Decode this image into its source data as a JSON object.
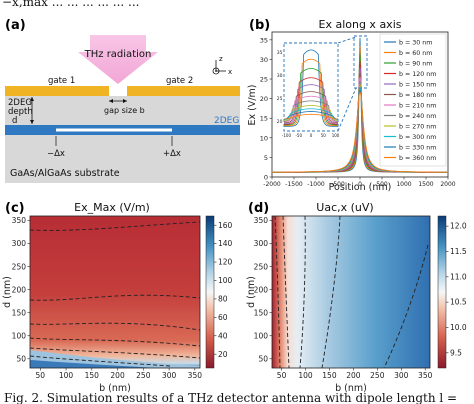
{
  "top_cut_text": "−x,max ... ... ... ... ... ...",
  "panel_a": {
    "label": "(a)",
    "thz": "THz radiation",
    "gate1": "gate 1",
    "gate2": "gate 2",
    "depth_lines": [
      "2DEG",
      "depth",
      "d"
    ],
    "gap": "gap size b",
    "twodeg": "2DEG",
    "minus_dx": "−Δx",
    "plus_dx": "+Δx",
    "substrate": "GaAs/AlGaAs substrate",
    "axis_z": "z",
    "axis_x": "x"
  },
  "panel_b_label": "(b)",
  "panel_c_label": "(c)",
  "panel_d_label": "(d)",
  "caption": "Fig. 2. Simulation results of a THz detector antenna with dipole length l =",
  "chart_data": [
    {
      "type": "line",
      "title": "Ex along x axis",
      "xlabel": "Position (nm)",
      "ylabel": "Ex (V/m)",
      "xlim": [
        -2000,
        2000
      ],
      "ylim": [
        0,
        37
      ],
      "xticks": [
        -2000,
        -1500,
        -1000,
        -500,
        0,
        500,
        1000,
        1500,
        2000
      ],
      "yticks": [
        0,
        5,
        10,
        15,
        20,
        25,
        30,
        35
      ],
      "legend_position": "right",
      "series": [
        {
          "name": "b = 30 nm",
          "peak": 35.5,
          "color": "#1f77b4"
        },
        {
          "name": "b = 60 nm",
          "peak": 33.5,
          "color": "#ff7f0e"
        },
        {
          "name": "b = 90 nm",
          "peak": 31.5,
          "color": "#2ca02c"
        },
        {
          "name": "b = 120 nm",
          "peak": 29.5,
          "color": "#d62728"
        },
        {
          "name": "b = 150 nm",
          "peak": 28.0,
          "color": "#9467bd"
        },
        {
          "name": "b = 180 nm",
          "peak": 26.5,
          "color": "#8c564b"
        },
        {
          "name": "b = 210 nm",
          "peak": 25.5,
          "color": "#e377c2"
        },
        {
          "name": "b = 240 nm",
          "peak": 24.5,
          "color": "#7f7f7f"
        },
        {
          "name": "b = 270 nm",
          "peak": 23.5,
          "color": "#bcbd22"
        },
        {
          "name": "b = 300 nm",
          "peak": 22.8,
          "color": "#17becf"
        },
        {
          "name": "b = 330 nm",
          "peak": 22.2,
          "color": "#1f77b4"
        },
        {
          "name": "b = 360 nm",
          "peak": 21.6,
          "color": "#ff7f0e"
        }
      ],
      "inset": {
        "xticks": [
          -100,
          -50,
          0,
          50,
          100
        ],
        "yticks": [
          20,
          25,
          30,
          35
        ]
      }
    },
    {
      "type": "heatmap",
      "title": "Ex_Max (V/m)",
      "xlabel": "b (nm)",
      "ylabel": "d (nm)",
      "xlim": [
        30,
        360
      ],
      "ylim": [
        30,
        360
      ],
      "xticks": [
        50,
        100,
        150,
        200,
        250,
        300,
        350
      ],
      "yticks": [
        50,
        100,
        150,
        200,
        250,
        300,
        350
      ],
      "colorbar_ticks": [
        20,
        40,
        60,
        80,
        100,
        120,
        140,
        160
      ],
      "colorbar_range": [
        5,
        170
      ],
      "colormap": "RdBu"
    },
    {
      "type": "heatmap",
      "title": "Uac,x (uV)",
      "xlabel": "b (nm)",
      "ylabel": "d (nm)",
      "xlim": [
        30,
        360
      ],
      "ylim": [
        30,
        360
      ],
      "xticks": [
        50,
        100,
        150,
        200,
        250,
        300,
        350
      ],
      "yticks": [
        50,
        100,
        150,
        200,
        250,
        300,
        350
      ],
      "colorbar_ticks": [
        9.5,
        10.0,
        10.5,
        11.0,
        11.5,
        12.0
      ],
      "colorbar_range": [
        9.2,
        12.2
      ],
      "colormap": "RdBu"
    }
  ]
}
